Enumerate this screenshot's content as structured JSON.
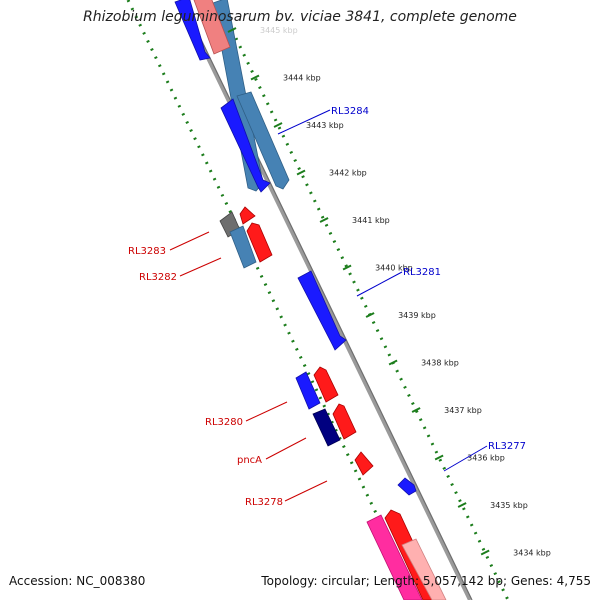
{
  "title": "Rhizobium leguminosarum bv. viciae 3841, complete genome",
  "footer": {
    "accession": "Accession: NC_008380",
    "summary": "Topology: circular; Length: 5,057,142 bp; Genes: 4,755"
  },
  "colors": {
    "backbone": "#8a8a8a",
    "tick": "#1c7d1c",
    "forward_label": "#0000cc",
    "reverse_label": "#cc0000",
    "forward_cds": "#1a1aff",
    "forward_cds_alt": "#4682b4",
    "reverse_cds": "#ff1a1a",
    "reverse_cds_alt": "#f08080"
  },
  "ticks": [
    {
      "kbp": 3445,
      "label": "3445 kbp"
    },
    {
      "kbp": 3444,
      "label": "3444 kbp"
    },
    {
      "kbp": 3443,
      "label": "3443 kbp"
    },
    {
      "kbp": 3442,
      "label": "3442 kbp"
    },
    {
      "kbp": 3441,
      "label": "3441 kbp"
    },
    {
      "kbp": 3440,
      "label": "3440 kbp"
    },
    {
      "kbp": 3439,
      "label": "3439 kbp"
    },
    {
      "kbp": 3438,
      "label": "3438 kbp"
    },
    {
      "kbp": 3437,
      "label": "3437 kbp"
    },
    {
      "kbp": 3436,
      "label": "3436 kbp"
    },
    {
      "kbp": 3435,
      "label": "3435 kbp"
    },
    {
      "kbp": 3434,
      "label": "3434 kbp"
    }
  ],
  "gene_labels": [
    {
      "text": "RL3284",
      "strand": "forward"
    },
    {
      "text": "RL3281",
      "strand": "forward"
    },
    {
      "text": "RL3277",
      "strand": "forward"
    },
    {
      "text": "RL3283",
      "strand": "reverse"
    },
    {
      "text": "RL3282",
      "strand": "reverse"
    },
    {
      "text": "RL3280",
      "strand": "reverse"
    },
    {
      "text": "pncA",
      "strand": "reverse"
    },
    {
      "text": "RL3278",
      "strand": "reverse"
    }
  ]
}
